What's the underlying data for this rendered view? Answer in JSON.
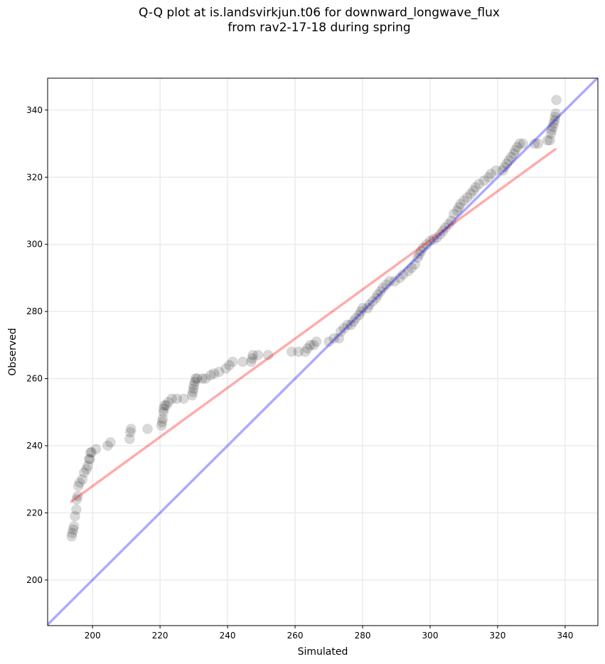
{
  "chart_data": {
    "type": "scatter",
    "title_line1": "Q-Q plot at is.landsvirkjun.t06 for downward_longwave_flux",
    "title_line2": "from rav2-17-18 during spring",
    "xlabel": "Simulated",
    "ylabel": "Observed",
    "xlim": [
      186.7,
      349.7
    ],
    "ylim": [
      186.4,
      349.5
    ],
    "xticks": [
      200,
      220,
      240,
      260,
      280,
      300,
      320,
      340
    ],
    "yticks": [
      200,
      220,
      240,
      260,
      280,
      300,
      320,
      340
    ],
    "grid": true,
    "point_color": "#000000",
    "points": [
      [
        193.8,
        213
      ],
      [
        194,
        214
      ],
      [
        194.3,
        215
      ],
      [
        194.5,
        216
      ],
      [
        194.8,
        219
      ],
      [
        195.2,
        221
      ],
      [
        195.3,
        224
      ],
      [
        195.6,
        225
      ],
      [
        195.8,
        228
      ],
      [
        196.2,
        229
      ],
      [
        197,
        230
      ],
      [
        197.5,
        232
      ],
      [
        198.2,
        233
      ],
      [
        198.6,
        234
      ],
      [
        199,
        236
      ],
      [
        199.2,
        236
      ],
      [
        199.4,
        238
      ],
      [
        199.7,
        238
      ],
      [
        201,
        239
      ],
      [
        204.5,
        240
      ],
      [
        205.3,
        241
      ],
      [
        211,
        242
      ],
      [
        211.2,
        244
      ],
      [
        211.4,
        245
      ],
      [
        216.3,
        245
      ],
      [
        220.4,
        246
      ],
      [
        220.6,
        247
      ],
      [
        220.8,
        248
      ],
      [
        221,
        250
      ],
      [
        221.1,
        251
      ],
      [
        221.3,
        252
      ],
      [
        221.8,
        252
      ],
      [
        222.5,
        253
      ],
      [
        223.5,
        254
      ],
      [
        225,
        254
      ],
      [
        227,
        254
      ],
      [
        229.5,
        255
      ],
      [
        229.7,
        256
      ],
      [
        229.9,
        257
      ],
      [
        230,
        258
      ],
      [
        230.3,
        259
      ],
      [
        230.5,
        260
      ],
      [
        231,
        260
      ],
      [
        232.5,
        260
      ],
      [
        233.5,
        260
      ],
      [
        235,
        261
      ],
      [
        236,
        261.5
      ],
      [
        237.5,
        262
      ],
      [
        239.5,
        263
      ],
      [
        240.5,
        264
      ],
      [
        241.5,
        265
      ],
      [
        244.5,
        265
      ],
      [
        247,
        265
      ],
      [
        247.3,
        266
      ],
      [
        247.5,
        267
      ],
      [
        249,
        267
      ],
      [
        252,
        267
      ],
      [
        259,
        268
      ],
      [
        261,
        268
      ],
      [
        263,
        268
      ],
      [
        263.7,
        269
      ],
      [
        264.5,
        270
      ],
      [
        265.5,
        270
      ],
      [
        266.3,
        271
      ],
      [
        270,
        271
      ],
      [
        271.5,
        272
      ],
      [
        273,
        272
      ],
      [
        273.5,
        274
      ],
      [
        274.5,
        275
      ],
      [
        275.5,
        276
      ],
      [
        276.5,
        276
      ],
      [
        277.3,
        277
      ],
      [
        278,
        278
      ],
      [
        279,
        279
      ],
      [
        279.5,
        280
      ],
      [
        280,
        281
      ],
      [
        281.5,
        281
      ],
      [
        282,
        282
      ],
      [
        283,
        283
      ],
      [
        284,
        284
      ],
      [
        284.5,
        285
      ],
      [
        285.3,
        286
      ],
      [
        286,
        287
      ],
      [
        287,
        288
      ],
      [
        288,
        289
      ],
      [
        289.5,
        289
      ],
      [
        291,
        290
      ],
      [
        292,
        291
      ],
      [
        293.5,
        292
      ],
      [
        294.5,
        293
      ],
      [
        295.5,
        294
      ],
      [
        296.3,
        296
      ],
      [
        296.8,
        297
      ],
      [
        297.3,
        298
      ],
      [
        298,
        299
      ],
      [
        299,
        300
      ],
      [
        300,
        301
      ],
      [
        301,
        301.5
      ],
      [
        302,
        302
      ],
      [
        303,
        303
      ],
      [
        303.8,
        304
      ],
      [
        304.5,
        305
      ],
      [
        305.5,
        306
      ],
      [
        306.3,
        307
      ],
      [
        307,
        309
      ],
      [
        308,
        310
      ],
      [
        308.5,
        311
      ],
      [
        309,
        312
      ],
      [
        310,
        313
      ],
      [
        311,
        314
      ],
      [
        312,
        315
      ],
      [
        312.8,
        316
      ],
      [
        313.5,
        317
      ],
      [
        314.5,
        318
      ],
      [
        316,
        319
      ],
      [
        317.3,
        320
      ],
      [
        318,
        321
      ],
      [
        319.5,
        322
      ],
      [
        321.5,
        322
      ],
      [
        322,
        323
      ],
      [
        322.7,
        324
      ],
      [
        323.3,
        325
      ],
      [
        324,
        326
      ],
      [
        324.8,
        327
      ],
      [
        325.2,
        328
      ],
      [
        325.8,
        329
      ],
      [
        326.5,
        330
      ],
      [
        327.5,
        330
      ],
      [
        331,
        330
      ],
      [
        332,
        330
      ],
      [
        334.8,
        331
      ],
      [
        335.5,
        331
      ],
      [
        335.8,
        333
      ],
      [
        336,
        334
      ],
      [
        336.3,
        335
      ],
      [
        336.6,
        336
      ],
      [
        336.9,
        337
      ],
      [
        337,
        338
      ],
      [
        337.2,
        339
      ],
      [
        337.4,
        343
      ]
    ],
    "lines": [
      {
        "name": "fit",
        "color": "#ff0000",
        "x": [
          193.5,
          337.3
        ],
        "y": [
          223.2,
          328.5
        ]
      },
      {
        "name": "identity",
        "color": "#0000ff",
        "x": [
          186.7,
          349.7
        ],
        "y": [
          186.7,
          349.7
        ]
      }
    ]
  }
}
